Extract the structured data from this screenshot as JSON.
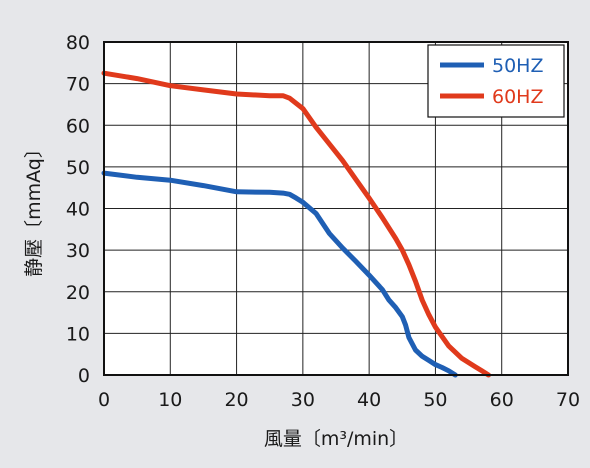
{
  "chart_data": {
    "type": "line",
    "xlabel": "風量〔m³/min〕",
    "ylabel": "静壓〔mmAq〕",
    "xlim": [
      0,
      70
    ],
    "ylim": [
      0,
      80
    ],
    "xticks": [
      "0",
      "10",
      "20",
      "30",
      "40",
      "50",
      "60",
      "70"
    ],
    "yticks": [
      "0",
      "10",
      "20",
      "30",
      "40",
      "50",
      "60",
      "70",
      "80"
    ],
    "grid": true,
    "legend_position": "top-right",
    "series": [
      {
        "name": "50HZ",
        "color": "#1f5fb4",
        "x": [
          0,
          5,
          10,
          15,
          20,
          25,
          27,
          28,
          29,
          30,
          32,
          34,
          36,
          38,
          40,
          42,
          43,
          44,
          45,
          45.5,
          46,
          47,
          48,
          49,
          50,
          51,
          52,
          53
        ],
        "y": [
          48.5,
          47.5,
          46.8,
          45.5,
          44,
          43.9,
          43.7,
          43.4,
          42.5,
          41.5,
          38.8,
          34,
          30.5,
          27.3,
          24,
          20.5,
          18,
          16.2,
          14,
          12,
          9,
          6,
          4.5,
          3.5,
          2.5,
          1.8,
          1,
          0
        ]
      },
      {
        "name": "60HZ",
        "color": "#e03a1c",
        "x": [
          0,
          5,
          10,
          15,
          20,
          25,
          27,
          28,
          30,
          32,
          34,
          36,
          38,
          40,
          42,
          44,
          45,
          46,
          47,
          48,
          49,
          50,
          52,
          54,
          56,
          57,
          58
        ],
        "y": [
          72.5,
          71.2,
          69.5,
          68.5,
          67.5,
          67.1,
          67.1,
          66.5,
          64,
          59.5,
          55.5,
          51.5,
          47,
          42.5,
          37.8,
          32.8,
          30,
          26.5,
          22.5,
          18,
          14.5,
          11.5,
          7,
          4,
          2,
          1,
          0
        ]
      }
    ]
  }
}
